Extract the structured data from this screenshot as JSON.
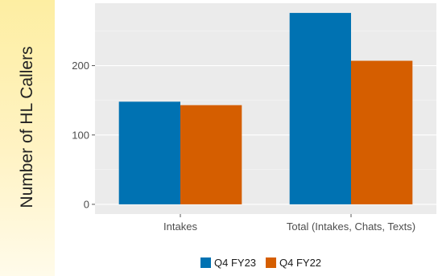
{
  "chart_data": {
    "type": "bar",
    "categories": [
      "Intakes",
      "Total (Intakes, Chats, Texts)"
    ],
    "series": [
      {
        "name": "Q4 FY23",
        "values": [
          148,
          276
        ],
        "color": "#0072b2"
      },
      {
        "name": "Q4 FY22",
        "values": [
          143,
          207
        ],
        "color": "#d55e00"
      }
    ],
    "ylabel": "Number of HL Callers",
    "yticks": [
      0,
      100,
      200
    ],
    "ylim": [
      -14,
      290
    ],
    "grid": true,
    "legend": "bottom"
  }
}
